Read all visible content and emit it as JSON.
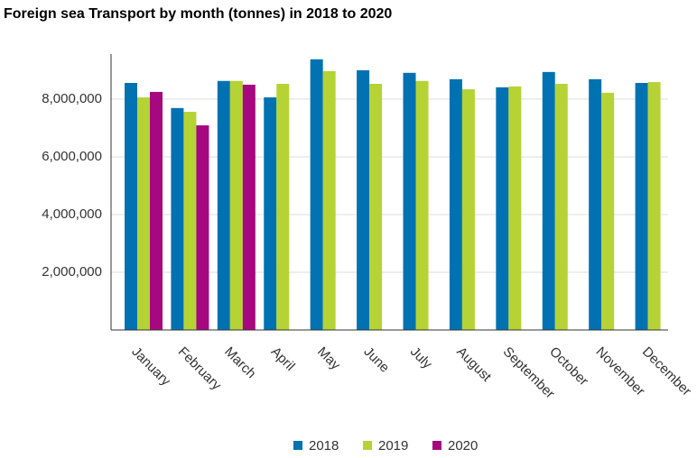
{
  "chart_data": {
    "type": "bar",
    "title": "Foreign sea Transport by month (tonnes) in 2018 to 2020",
    "categories": [
      "January",
      "February",
      "March",
      "April",
      "May",
      "June",
      "July",
      "August",
      "September",
      "October",
      "November",
      "December"
    ],
    "series": [
      {
        "name": "2018",
        "color": "#0072b2",
        "values": [
          8560000,
          7690000,
          8630000,
          8060000,
          9380000,
          9000000,
          8910000,
          8690000,
          8410000,
          8940000,
          8690000,
          8560000
        ]
      },
      {
        "name": "2019",
        "color": "#b5d334",
        "values": [
          8060000,
          7560000,
          8630000,
          8530000,
          8970000,
          8530000,
          8630000,
          8340000,
          8440000,
          8530000,
          8220000,
          8590000
        ]
      },
      {
        "name": "2020",
        "color": "#a5087f",
        "values": [
          8250000,
          7090000,
          8500000,
          null,
          null,
          null,
          null,
          null,
          null,
          null,
          null,
          null
        ]
      }
    ],
    "ylim": [
      0,
      9560000
    ],
    "yticks": [
      {
        "value": 2000000,
        "label": "2,000,000"
      },
      {
        "value": 4000000,
        "label": "4,000,000"
      },
      {
        "value": 6000000,
        "label": "6,000,000"
      },
      {
        "value": 8000000,
        "label": "8,000,000"
      }
    ],
    "grid": true
  }
}
